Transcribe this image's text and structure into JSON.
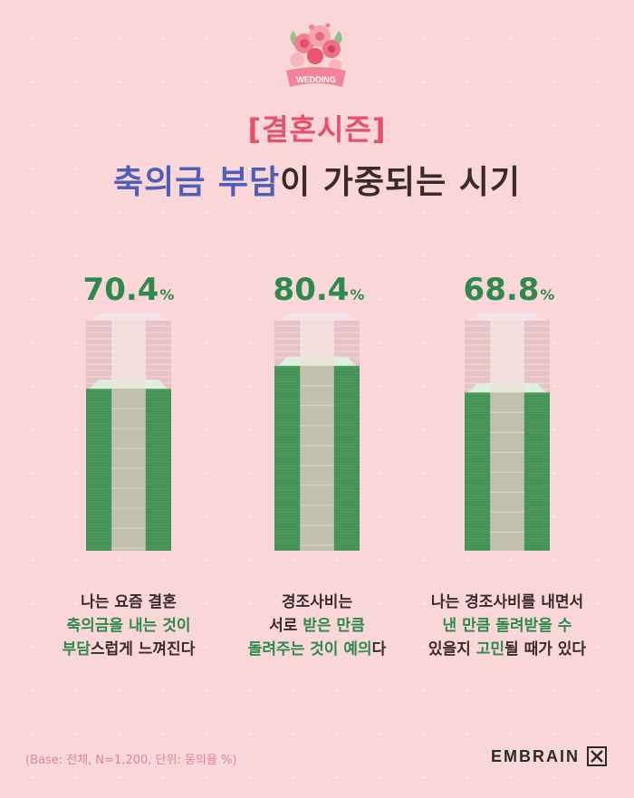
{
  "badge": {
    "label": "WEDDING"
  },
  "title": {
    "line1": "[결혼시즌]",
    "line2_highlight": "축의금 부담",
    "line2_rest": "이 가중되는 시기"
  },
  "chart_data": {
    "type": "bar",
    "categories": [
      "나는 요즘 결혼 축의금을 내는 것이 부담스럽게 느껴진다",
      "경조사비는 서로 받은 만큼 돌려주는 것이 예의다",
      "나는 경조사비를 내면서 낸 만큼 돌려받을 수 있을지 고민될 때가 있다"
    ],
    "values": [
      70.4,
      80.4,
      68.8
    ],
    "value_labels": [
      "70.4",
      "80.4",
      "68.8"
    ],
    "unit": "%",
    "ylim": [
      0,
      100
    ],
    "captions": [
      {
        "line1": "나는 요즘 결혼",
        "line2_green": "축의금을 내는 것이",
        "line3_green": "부담",
        "line3_rest": "스럽게 느껴진다"
      },
      {
        "line1": "경조사비는",
        "line2_pre": "서로 ",
        "line2_green": "받은 만큼",
        "line3_green": "돌려주는 것이 예의",
        "line3_rest": "다"
      },
      {
        "line1": "나는 경조사비를 내면서",
        "line2_green": "낸 만큼 돌려받을 수",
        "line3_pre": "있을지 ",
        "line3_green": "고민",
        "line3_rest": "될 때가 있다"
      }
    ],
    "colors": {
      "money": "#4c9a5c",
      "band": "#c3c0ae",
      "faded": "#e7c3c8",
      "value": "#2e8a4c"
    }
  },
  "footer": {
    "base": "(Base: 전체, N=1,200, 단위: 동의율 %)",
    "brand": "EMBRAIN"
  }
}
